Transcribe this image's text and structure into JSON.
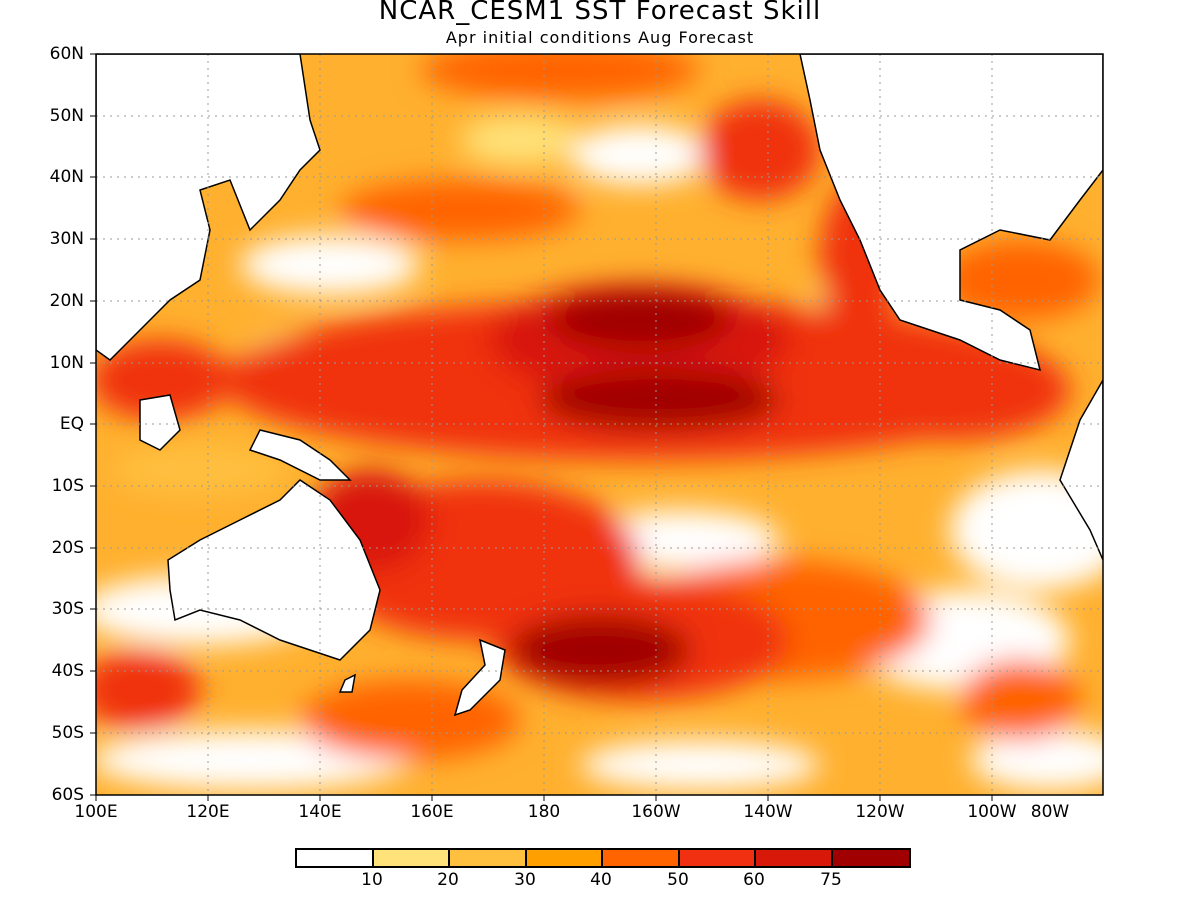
{
  "title": "NCAR_CESM1 SST Forecast Skill",
  "subtitle": "Apr initial conditions  Aug Forecast",
  "lat_labels": [
    "60N",
    "50N",
    "40N",
    "30N",
    "20N",
    "10N",
    "EQ",
    "10S",
    "20S",
    "30S",
    "40S",
    "50S",
    "60S"
  ],
  "lon_labels": [
    "100E",
    "120E",
    "140E",
    "160E",
    "180",
    "160W",
    "140W",
    "120W",
    "100W",
    "80W"
  ],
  "colorbar": {
    "colors": [
      "#ffffff",
      "#ffe27a",
      "#ffc040",
      "#ffa000",
      "#ff6400",
      "#f03010",
      "#d81808",
      "#a00000"
    ],
    "labels": [
      "10",
      "20",
      "30",
      "40",
      "50",
      "60",
      "75"
    ]
  },
  "chart_data": {
    "type": "heatmap",
    "title": "NCAR_CESM1 SST Forecast Skill",
    "subtitle": "Apr initial conditions  Aug Forecast",
    "x_range": [
      "100E",
      "70W"
    ],
    "y_range": [
      "60S",
      "60N"
    ],
    "x_ticks": [
      "100E",
      "120E",
      "140E",
      "160E",
      "180",
      "160W",
      "140W",
      "120W",
      "100W",
      "80W"
    ],
    "y_ticks": [
      "60N",
      "50N",
      "40N",
      "30N",
      "20N",
      "10N",
      "EQ",
      "10S",
      "20S",
      "30S",
      "40S",
      "50S",
      "60S"
    ],
    "levels": [
      10,
      20,
      30,
      40,
      50,
      60,
      75
    ],
    "grid": true
  }
}
